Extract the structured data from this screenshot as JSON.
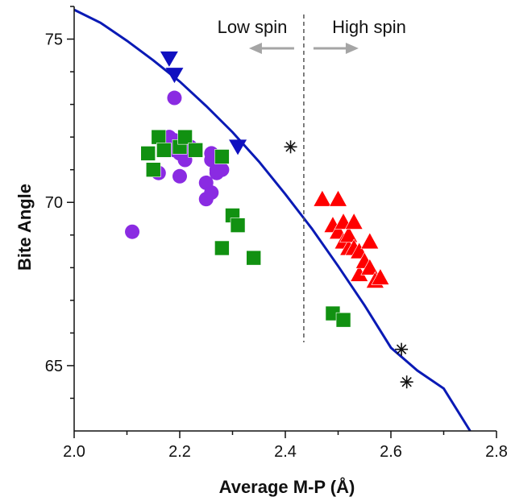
{
  "chart_data": {
    "type": "scatter",
    "title": "",
    "xlabel": "Average M-P (Å)",
    "ylabel": "Bite Angle",
    "xlim": [
      2.0,
      2.8
    ],
    "ylim": [
      63.0,
      76.0
    ],
    "xticks": [
      "2.0",
      "2.2",
      "2.4",
      "2.6",
      "2.8"
    ],
    "yticks": [
      "65",
      "70",
      "75"
    ],
    "grid": false,
    "annotations": {
      "divider_x": 2.435,
      "low": "Low spin",
      "high": "High spin"
    },
    "series": [
      {
        "marker": "circle",
        "color": "#8a2be2",
        "points": [
          [
            2.11,
            69.1
          ],
          [
            2.16,
            70.9
          ],
          [
            2.17,
            71.8
          ],
          [
            2.18,
            72.0
          ],
          [
            2.19,
            73.2
          ],
          [
            2.19,
            71.6
          ],
          [
            2.19,
            71.9
          ],
          [
            2.2,
            70.8
          ],
          [
            2.2,
            71.5
          ],
          [
            2.21,
            71.8
          ],
          [
            2.21,
            71.3
          ],
          [
            2.22,
            71.7
          ],
          [
            2.25,
            70.1
          ],
          [
            2.25,
            70.6
          ],
          [
            2.26,
            71.3
          ],
          [
            2.26,
            71.5
          ],
          [
            2.27,
            70.9
          ],
          [
            2.27,
            71.0
          ],
          [
            2.28,
            71.0
          ],
          [
            2.26,
            70.3
          ]
        ]
      },
      {
        "marker": "square",
        "color": "#119111",
        "points": [
          [
            2.14,
            71.5
          ],
          [
            2.15,
            71.0
          ],
          [
            2.16,
            72.0
          ],
          [
            2.17,
            71.6
          ],
          [
            2.2,
            71.7
          ],
          [
            2.21,
            72.0
          ],
          [
            2.23,
            71.6
          ],
          [
            2.28,
            71.4
          ],
          [
            2.3,
            69.6
          ],
          [
            2.31,
            69.3
          ],
          [
            2.28,
            68.6
          ],
          [
            2.34,
            68.3
          ],
          [
            2.49,
            66.6
          ],
          [
            2.51,
            66.4
          ]
        ]
      },
      {
        "marker": "triangle-down",
        "color": "#1010c0",
        "points": [
          [
            2.18,
            74.4
          ],
          [
            2.19,
            73.9
          ],
          [
            2.31,
            71.7
          ]
        ]
      },
      {
        "marker": "triangle-up",
        "color": "#ff0000",
        "points": [
          [
            2.47,
            70.1
          ],
          [
            2.49,
            69.3
          ],
          [
            2.5,
            70.1
          ],
          [
            2.5,
            69.1
          ],
          [
            2.51,
            69.4
          ],
          [
            2.51,
            68.8
          ],
          [
            2.52,
            68.6
          ],
          [
            2.52,
            69.0
          ],
          [
            2.53,
            69.4
          ],
          [
            2.53,
            68.6
          ],
          [
            2.54,
            68.5
          ],
          [
            2.54,
            67.8
          ],
          [
            2.55,
            68.2
          ],
          [
            2.56,
            68.8
          ],
          [
            2.56,
            68.0
          ],
          [
            2.57,
            67.6
          ],
          [
            2.58,
            67.7
          ]
        ]
      },
      {
        "marker": "asterisk",
        "color": "#111111",
        "points": [
          [
            2.41,
            71.7
          ],
          [
            2.62,
            65.5
          ],
          [
            2.63,
            64.5
          ]
        ]
      }
    ],
    "fit_curve": {
      "color": "#0a1ab5",
      "points": [
        [
          2.0,
          75.9
        ],
        [
          2.05,
          75.5
        ],
        [
          2.1,
          74.95
        ],
        [
          2.15,
          74.35
        ],
        [
          2.2,
          73.7
        ],
        [
          2.25,
          72.95
        ],
        [
          2.3,
          72.15
        ],
        [
          2.35,
          71.25
        ],
        [
          2.4,
          70.25
        ],
        [
          2.45,
          69.2
        ],
        [
          2.5,
          68.05
        ],
        [
          2.55,
          66.85
        ],
        [
          2.6,
          65.55
        ],
        [
          2.65,
          64.85
        ],
        [
          2.7,
          64.3
        ],
        [
          2.75,
          63.0
        ]
      ]
    }
  }
}
